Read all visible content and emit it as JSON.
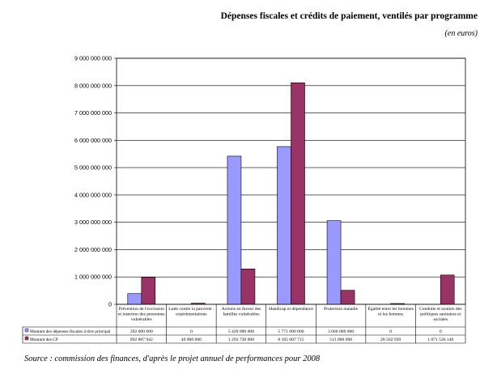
{
  "header": {
    "title": "Dépenses fiscales et crédits de paiement, ventilés par programme",
    "subtitle": "(en euros)"
  },
  "footer": {
    "source": "Source : commission des finances, d'après le projet annuel de performances pour 2008"
  },
  "colors": {
    "series1": "#9999ff",
    "series2": "#993366",
    "axis": "#000000",
    "grid": "#000000"
  },
  "chart_data": {
    "type": "bar",
    "title": "Dépenses fiscales et crédits de paiement, ventilés par programme",
    "subtitle": "(en euros)",
    "xlabel": "",
    "ylabel": "",
    "ylim": [
      0,
      9000000000
    ],
    "yticks": [
      0,
      1000000000,
      2000000000,
      3000000000,
      4000000000,
      5000000000,
      6000000000,
      7000000000,
      8000000000,
      9000000000
    ],
    "ytick_labels": [
      "0",
      "1 000 000 000",
      "2 000 000 000",
      "3 000 000 000",
      "4 000 000 000",
      "5 000 000 000",
      "6 000 000 000",
      "7 000 000 000",
      "8 000 000 000",
      "9 000 000 000"
    ],
    "grid": true,
    "legend": "table-left",
    "categories": [
      [
        "Prévention de l'exclusion",
        "et insertion des personnes",
        "vulnérables"
      ],
      [
        "Lutte contre la pauvreté :",
        "expérimentations"
      ],
      [
        "Actions en faveur des",
        "familles vulnérables"
      ],
      [
        "Handicap et dépendance"
      ],
      [
        "Protection maladie"
      ],
      [
        "Égalité entre les hommes",
        "et les femmes"
      ],
      [
        "Conduite et soutien des",
        "politiques sanitaires et",
        "sociales"
      ]
    ],
    "series": [
      {
        "name": "Montant des dépenses fiscales à titre principal",
        "values": [
          392000000,
          0,
          5420000000,
          5771000000,
          3060000000,
          0,
          0
        ],
        "labels": [
          "392 000 000",
          "0",
          "5 420 000 000",
          "5 771 000 000",
          "3 060 000 000",
          "0",
          "0"
        ]
      },
      {
        "name": "Montant des CP",
        "values": [
          992887942,
          40000000,
          1293730000,
          8105007715,
          513000000,
          28502939,
          1071536140
        ],
        "labels": [
          "992 887 942",
          "40 000 000",
          "1 293 730 000",
          "8 105 007 715",
          "513 000 000",
          "28 502 939",
          "1 071 536 140"
        ]
      }
    ]
  }
}
